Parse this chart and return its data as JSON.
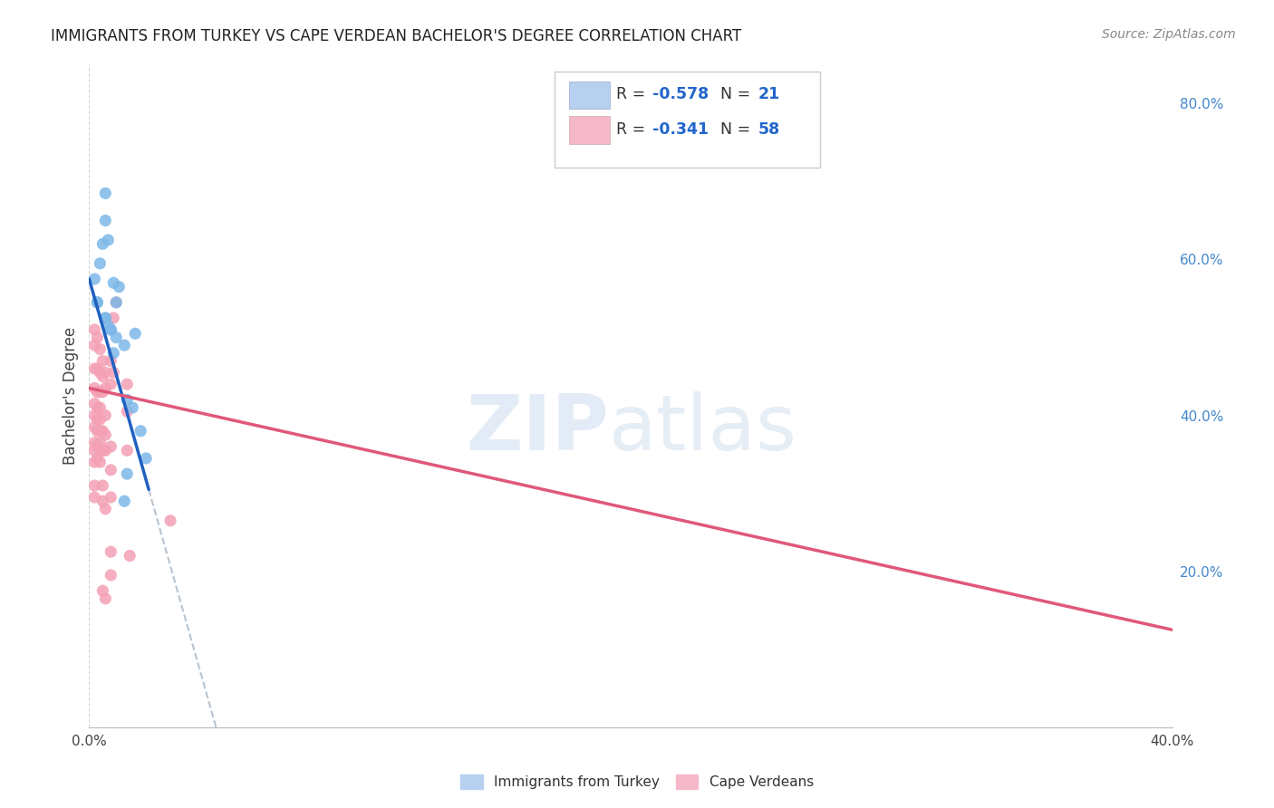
{
  "title": "IMMIGRANTS FROM TURKEY VS CAPE VERDEAN BACHELOR'S DEGREE CORRELATION CHART",
  "source": "Source: ZipAtlas.com",
  "ylabel": "Bachelor's Degree",
  "legend_color1": "#b8d0f0",
  "legend_color2": "#f5b8c8",
  "blue_color": "#7db8e8",
  "pink_color": "#f4a0b5",
  "blue_line_color": "#2060c0",
  "pink_line_color": "#e05878",
  "dashed_line_color": "#b8c4d0",
  "bg_color": "#ffffff",
  "grid_color": "#cccccc",
  "turkey_x": [
    0.002,
    0.003,
    0.003,
    0.004,
    0.005,
    0.006,
    0.006,
    0.007,
    0.008,
    0.008,
    0.009,
    0.01,
    0.011,
    0.013,
    0.014,
    0.016,
    0.017,
    0.019,
    0.021,
    0.014,
    0.013,
    0.006,
    0.006,
    0.007,
    0.009,
    0.01
  ],
  "turkey_y": [
    0.575,
    0.545,
    0.545,
    0.595,
    0.62,
    0.525,
    0.525,
    0.515,
    0.51,
    0.51,
    0.48,
    0.5,
    0.565,
    0.49,
    0.42,
    0.41,
    0.505,
    0.38,
    0.345,
    0.325,
    0.29,
    0.685,
    0.65,
    0.625,
    0.57,
    0.545
  ],
  "cv_x": [
    0.002,
    0.002,
    0.002,
    0.002,
    0.002,
    0.002,
    0.002,
    0.002,
    0.002,
    0.002,
    0.002,
    0.002,
    0.003,
    0.003,
    0.003,
    0.003,
    0.003,
    0.003,
    0.003,
    0.003,
    0.004,
    0.004,
    0.004,
    0.004,
    0.004,
    0.004,
    0.004,
    0.004,
    0.005,
    0.005,
    0.005,
    0.005,
    0.005,
    0.005,
    0.005,
    0.005,
    0.006,
    0.006,
    0.006,
    0.006,
    0.006,
    0.006,
    0.006,
    0.008,
    0.008,
    0.008,
    0.008,
    0.008,
    0.008,
    0.008,
    0.009,
    0.009,
    0.01,
    0.014,
    0.014,
    0.014,
    0.015,
    0.03
  ],
  "cv_y": [
    0.51,
    0.49,
    0.46,
    0.435,
    0.415,
    0.4,
    0.385,
    0.365,
    0.355,
    0.34,
    0.31,
    0.295,
    0.5,
    0.46,
    0.43,
    0.41,
    0.395,
    0.38,
    0.36,
    0.345,
    0.485,
    0.455,
    0.43,
    0.41,
    0.395,
    0.38,
    0.365,
    0.34,
    0.47,
    0.45,
    0.43,
    0.38,
    0.355,
    0.31,
    0.29,
    0.175,
    0.455,
    0.435,
    0.4,
    0.375,
    0.355,
    0.28,
    0.165,
    0.47,
    0.44,
    0.36,
    0.33,
    0.295,
    0.225,
    0.195,
    0.525,
    0.455,
    0.545,
    0.44,
    0.405,
    0.355,
    0.22,
    0.265
  ],
  "turkey_line_x": [
    0.0,
    0.022
  ],
  "turkey_line_y": [
    0.575,
    0.305
  ],
  "cv_line_x": [
    0.0,
    0.4
  ],
  "cv_line_y": [
    0.435,
    0.125
  ],
  "dash_line_x": [
    0.022,
    0.4
  ],
  "xlim": [
    0.0,
    0.4
  ],
  "ylim": [
    0.0,
    0.85
  ]
}
